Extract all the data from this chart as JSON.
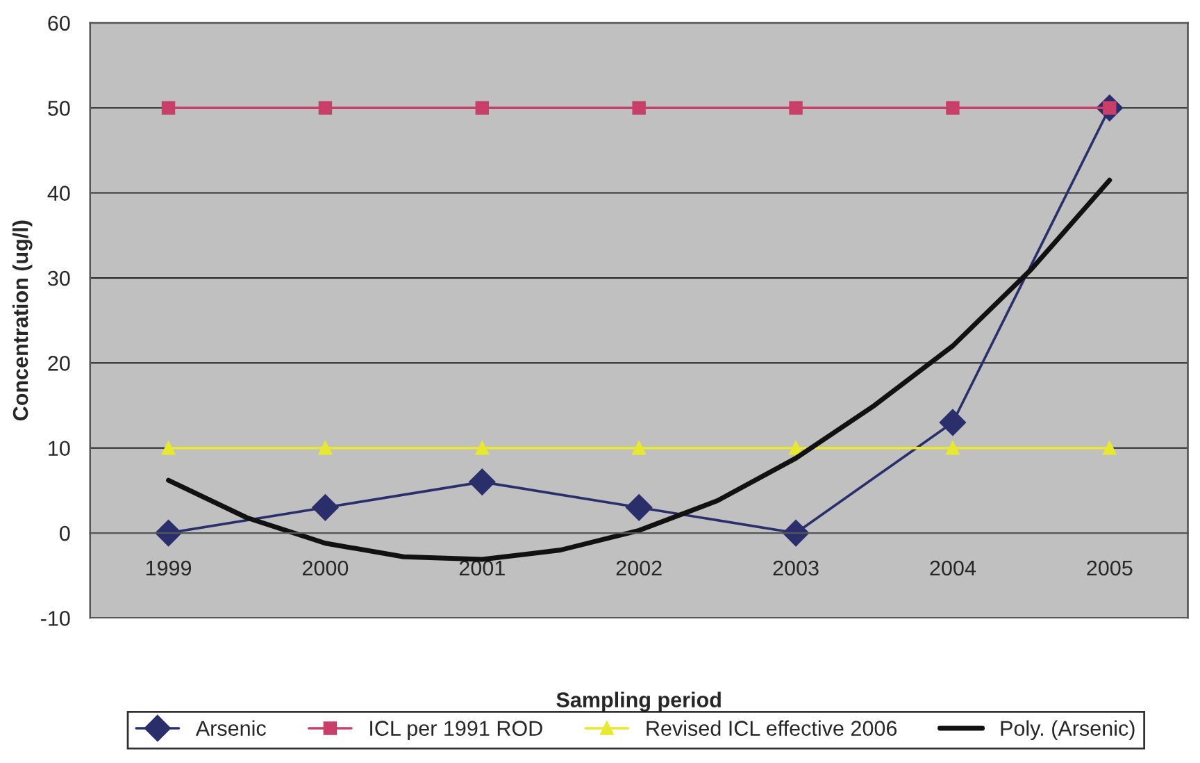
{
  "chart_data": {
    "type": "line",
    "xlabel": "Sampling period",
    "ylabel": "Concentration (ug/l)",
    "x": [
      1999,
      2000,
      2001,
      2002,
      2003,
      2004,
      2005
    ],
    "xlim": [
      1998.5,
      2005.5
    ],
    "xticks": [
      1999,
      2000,
      2001,
      2002,
      2003,
      2004,
      2005
    ],
    "ylim": [
      -10,
      60
    ],
    "yticks": [
      -10,
      0,
      10,
      20,
      30,
      40,
      50,
      60
    ],
    "grid": "y",
    "legend": "bottom",
    "series": [
      {
        "name": "Arsenic",
        "color": "#2a2f6b",
        "marker": "diamond",
        "values": [
          0,
          3,
          6,
          3,
          0,
          13,
          50
        ]
      },
      {
        "name": "ICL per 1991 ROD",
        "color": "#c8406a",
        "marker": "square",
        "values": [
          50,
          50,
          50,
          50,
          50,
          50,
          50
        ]
      },
      {
        "name": "Revised ICL effective 2006",
        "color": "#e8e830",
        "marker": "triangle",
        "values": [
          10,
          10,
          10,
          10,
          10,
          10,
          10
        ]
      },
      {
        "name": "Poly. (Arsenic)",
        "color": "#111111",
        "marker": "none",
        "x": [
          1999,
          1999.5,
          2000,
          2000.5,
          2001,
          2001.5,
          2002,
          2002.5,
          2003,
          2003.5,
          2004,
          2004.5,
          2005
        ],
        "values": [
          6.2,
          1.8,
          -1.2,
          -2.8,
          -3.1,
          -2.0,
          0.3,
          3.8,
          8.8,
          15,
          22,
          31,
          41.5
        ]
      }
    ]
  }
}
